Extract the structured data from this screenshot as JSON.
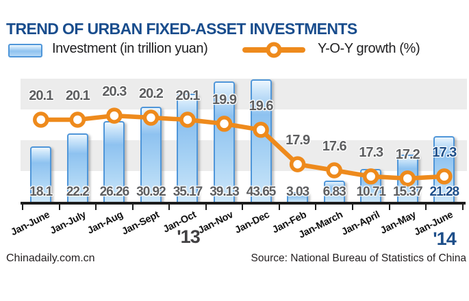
{
  "header": {
    "title": "TREND OF URBAN FIXED-ASSET INVESTMENTS"
  },
  "legend": {
    "investment_label": "Investment (in trillion yuan)",
    "growth_label": "Y-O-Y growth (%)"
  },
  "era": {
    "left": "'13",
    "right": "'14"
  },
  "footer": {
    "brand": "Chinadaily.com.cn",
    "source": "Source: National Bureau of Statistics of China"
  },
  "colors": {
    "title_blue": "#194d8d",
    "highlight_blue": "#1d4e89",
    "label_gray": "#5d5e60",
    "band_gray": "#ececec",
    "bar_border_blue": "#4f96d9",
    "bar_fill_light": "#cde7fa",
    "bar_fill_mid": "#8ec2f0",
    "line_orange": "#ee8a1c",
    "axis_black": "#1c1c1c"
  },
  "chart_data": {
    "type": "combo",
    "title": "TREND OF URBAN FIXED-ASSET INVESTMENTS",
    "categories": [
      "Jan-June",
      "Jan-July",
      "Jan-Aug",
      "Jan-Sept",
      "Jan-Oct",
      "Jan-Nov",
      "Jan-Dec",
      "Jan-Feb",
      "Jan-March",
      "Jan-April",
      "Jan-May",
      "Jan-June"
    ],
    "series": [
      {
        "name": "Investment (in trillion yuan)",
        "type": "bar",
        "values": [
          18.1,
          22.2,
          26.26,
          30.92,
          35.17,
          39.13,
          43.65,
          3.03,
          6.83,
          10.71,
          15.37,
          21.28
        ]
      },
      {
        "name": "Y-O-Y growth (%)",
        "type": "line",
        "values": [
          20.1,
          20.1,
          20.3,
          20.2,
          20.1,
          19.9,
          19.6,
          17.9,
          17.6,
          17.3,
          17.2,
          17.3
        ]
      }
    ],
    "year_groups": [
      {
        "label": "'13",
        "span": "Jan-June to Jan-Dec"
      },
      {
        "label": "'14",
        "span": "Jan-Feb to Jan-June"
      }
    ],
    "notes": "Last category values (21.28 and 17.3) highlighted in dark blue",
    "legend_position": "top",
    "grid": "horizontal-bands"
  }
}
